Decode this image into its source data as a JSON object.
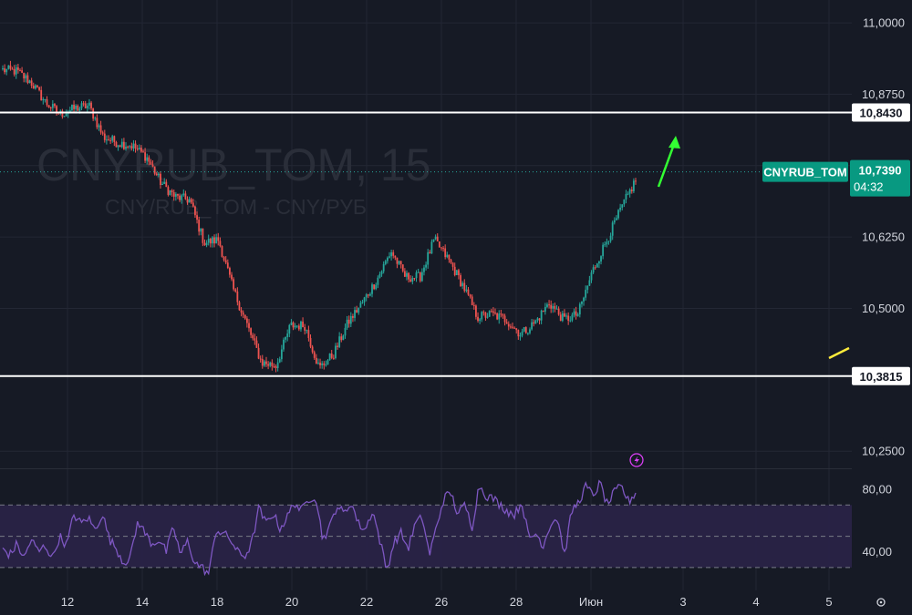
{
  "watermark": {
    "symbol": "CNYRUB_TOM, 15",
    "description": "CNY/RUB_TOM - CNY/РУБ"
  },
  "colors": {
    "background": "#161a25",
    "grid": "#232734",
    "up": "#26a69a",
    "down": "#ef5350",
    "rsi": "#7e57c2",
    "rsi_band": "#2a2448",
    "level_line": "#ffffff",
    "arrow_up": "#33ff33",
    "arrow_yellow": "#ffeb3b",
    "tag_green": "#089981",
    "text": "#d1d4dc"
  },
  "icons": {
    "alert": "lightning-icon",
    "settings": "settings-gear-icon"
  },
  "chart_data": [
    {
      "type": "candlestick",
      "symbol": "CNYRUB_TOM",
      "interval": "15",
      "y_ticks": [
        "11,0000",
        "10,8750",
        "10,6250",
        "10,5000",
        "10,2500"
      ],
      "ylim": [
        10.22,
        11.04
      ],
      "x_ticks": [
        "12",
        "14",
        "18",
        "20",
        "22",
        "26",
        "28",
        "Июн",
        "3",
        "4",
        "5"
      ],
      "levels": [
        {
          "label": "10,8430",
          "value": 10.843
        },
        {
          "label": "10,3815",
          "value": 10.3815
        }
      ],
      "last_price": {
        "symbol_label": "CNYRUB_TOM",
        "price_label": "10,7390",
        "value": 10.739,
        "countdown": "04:32"
      },
      "price_path": [
        [
          10.935,
          10.9
        ],
        [
          10.92,
          10.91
        ],
        [
          10.9,
          10.89
        ],
        [
          10.88,
          10.84
        ],
        [
          10.86,
          10.82
        ],
        [
          10.85,
          10.85
        ],
        [
          10.87,
          10.84
        ],
        [
          10.81,
          10.79
        ],
        [
          10.8,
          10.78
        ],
        [
          10.79,
          10.78
        ],
        [
          10.77,
          10.76
        ],
        [
          10.72,
          10.72
        ],
        [
          10.69,
          10.7
        ],
        [
          10.71,
          10.67
        ],
        [
          10.62,
          10.61
        ],
        [
          10.62,
          10.62
        ],
        [
          10.56,
          10.51
        ],
        [
          10.49,
          10.45
        ],
        [
          10.41,
          10.4
        ],
        [
          10.38,
          10.42
        ],
        [
          10.47,
          10.47
        ],
        [
          10.48,
          10.46
        ],
        [
          10.4,
          10.39
        ],
        [
          10.42,
          10.42
        ],
        [
          10.45,
          10.5
        ],
        [
          10.52,
          10.5
        ],
        [
          10.53,
          10.57
        ],
        [
          10.58,
          10.62
        ],
        [
          10.56,
          10.55
        ],
        [
          10.54,
          10.57
        ],
        [
          10.63,
          10.61
        ],
        [
          10.6,
          10.57
        ],
        [
          10.56,
          10.52
        ],
        [
          10.49,
          10.48
        ],
        [
          10.48,
          10.5
        ],
        [
          10.49,
          10.47
        ],
        [
          10.46,
          10.45
        ],
        [
          10.47,
          10.48
        ],
        [
          10.51,
          10.51
        ],
        [
          10.49,
          10.47
        ],
        [
          10.49,
          10.49
        ],
        [
          10.55,
          10.58
        ],
        [
          10.61,
          10.63
        ],
        [
          10.66,
          10.69
        ],
        [
          10.71,
          10.74
        ]
      ]
    },
    {
      "type": "line",
      "indicator": "RSI",
      "y_ticks": [
        "80,00",
        "40,00"
      ],
      "ylim": [
        20,
        90
      ],
      "bands": [
        70,
        50,
        30
      ],
      "series": [
        {
          "values": [
            42,
            38,
            45,
            36,
            48,
            40,
            44,
            36,
            50,
            44,
            64,
            58,
            62,
            54,
            65,
            48,
            42,
            33,
            37,
            60,
            52,
            45,
            48,
            40,
            56,
            38,
            47,
            33,
            30,
            26,
            54,
            52,
            48,
            40,
            37,
            45,
            68,
            58,
            65,
            55,
            62,
            72,
            66,
            74,
            76,
            48,
            56,
            70,
            64,
            72,
            58,
            54,
            67,
            48,
            28,
            46,
            52,
            42,
            58,
            62,
            38,
            56,
            74,
            78,
            64,
            70,
            56,
            83,
            76,
            74,
            70,
            66,
            64,
            72,
            48,
            52,
            44,
            58,
            62,
            38,
            66,
            72,
            82,
            76,
            84,
            70,
            78,
            82,
            72,
            78
          ]
        }
      ]
    }
  ]
}
